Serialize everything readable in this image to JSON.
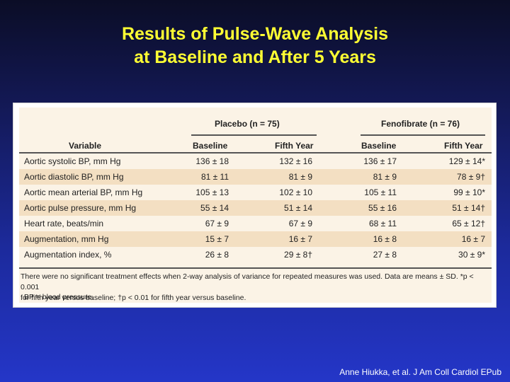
{
  "title": {
    "line1": "Results of Pulse-Wave Analysis",
    "line2": "at Baseline and After 5 Years"
  },
  "table": {
    "groups": [
      {
        "label": "Placebo (n = 75)"
      },
      {
        "label": "Fenofibrate (n = 76)"
      }
    ],
    "columns": [
      "Variable",
      "Baseline",
      "Fifth Year",
      "Baseline",
      "Fifth Year"
    ],
    "rows": [
      {
        "variable": "Aortic systolic BP, mm Hg",
        "values": [
          "136 ± 18",
          "132 ± 16",
          "136 ± 17",
          "129 ± 14*"
        ]
      },
      {
        "variable": "Aortic diastolic BP, mm Hg",
        "values": [
          "81 ± 11",
          "81 ± 9",
          "81 ± 9",
          "78 ± 9†"
        ]
      },
      {
        "variable": "Aortic mean arterial BP, mm Hg",
        "values": [
          "105 ± 13",
          "102 ± 10",
          "105 ± 11",
          "99 ± 10*"
        ]
      },
      {
        "variable": "Aortic pulse pressure, mm Hg",
        "values": [
          "55 ± 14",
          "51 ± 14",
          "55 ± 16",
          "51 ± 14†"
        ]
      },
      {
        "variable": "Heart rate, beats/min",
        "values": [
          "67 ± 9",
          "67 ± 9",
          "68 ± 11",
          "65 ± 12†"
        ]
      },
      {
        "variable": "Augmentation, mm Hg",
        "values": [
          "15 ± 7",
          "16 ± 7",
          "16 ± 8",
          "16 ± 7"
        ]
      },
      {
        "variable": "Augmentation index, %",
        "values": [
          "26 ± 8",
          "29 ± 8†",
          "27 ± 8",
          "30 ± 9*"
        ]
      }
    ],
    "footnote_line1": "There were no significant treatment effects when 2-way analysis of variance for repeated measures was used. Data are means ± SD. *p < 0.001",
    "footnote_line2": "for fifth year versus baseline; †p < 0.01 for fifth year versus baseline.",
    "abbreviation": "BP = blood pressure."
  },
  "citation": "Anne Hiukka, et al. J Am Coll Cardiol EPub"
}
